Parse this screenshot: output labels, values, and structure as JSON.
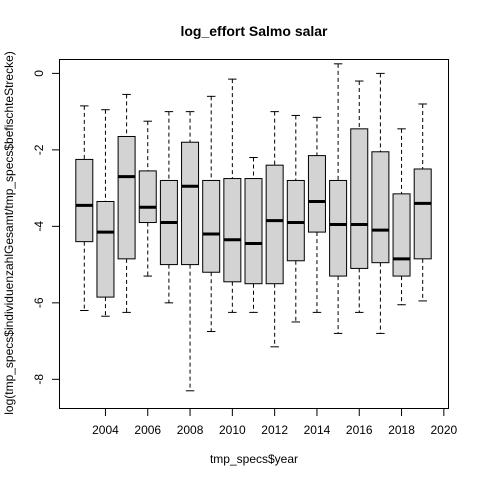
{
  "chart_data": {
    "type": "boxplot",
    "title": "log_effort Salmo salar",
    "xlabel": "tmp_specs$year",
    "ylabel": "log(tmp_specs$individuenzahlGesamt/tmp_specs$befischteStrecke)",
    "ylim": [
      -8.75,
      0.35
    ],
    "yticks": [
      0,
      -2,
      -4,
      -6,
      -8
    ],
    "xtick_labels": [
      "2004",
      "2006",
      "2008",
      "2010",
      "2012",
      "2014",
      "2016",
      "2018",
      "2020"
    ],
    "box_fill": "#d3d3d3",
    "frame": true,
    "grid": false,
    "categories": [
      "2003",
      "2004",
      "2005",
      "2006",
      "2007",
      "2008",
      "2009",
      "2010",
      "2011",
      "2012",
      "2013",
      "2014",
      "2015",
      "2016",
      "2017",
      "2018",
      "2019",
      "2020"
    ],
    "boxes": [
      {
        "year": "2003",
        "whisker_low": -6.2,
        "q1": -4.4,
        "median": -3.45,
        "q3": -2.25,
        "whisker_high": -0.85
      },
      {
        "year": "2004",
        "whisker_low": -6.35,
        "q1": -5.85,
        "median": -4.15,
        "q3": -3.35,
        "whisker_high": -0.95
      },
      {
        "year": "2005",
        "whisker_low": -6.25,
        "q1": -4.85,
        "median": -2.7,
        "q3": -1.65,
        "whisker_high": -0.55
      },
      {
        "year": "2006",
        "whisker_low": -5.3,
        "q1": -3.9,
        "median": -3.5,
        "q3": -2.55,
        "whisker_high": -1.25
      },
      {
        "year": "2007",
        "whisker_low": -6.0,
        "q1": -5.0,
        "median": -3.9,
        "q3": -2.8,
        "whisker_high": -1.0
      },
      {
        "year": "2008",
        "whisker_low": -8.3,
        "q1": -5.0,
        "median": -2.95,
        "q3": -1.8,
        "whisker_high": -1.0
      },
      {
        "year": "2009",
        "whisker_low": -6.75,
        "q1": -5.2,
        "median": -4.2,
        "q3": -2.8,
        "whisker_high": -0.6
      },
      {
        "year": "2010",
        "whisker_low": -6.25,
        "q1": -5.45,
        "median": -4.35,
        "q3": -2.75,
        "whisker_high": -0.15
      },
      {
        "year": "2011",
        "whisker_low": -6.25,
        "q1": -5.5,
        "median": -4.45,
        "q3": -2.75,
        "whisker_high": -2.2
      },
      {
        "year": "2012",
        "whisker_low": -7.15,
        "q1": -5.5,
        "median": -3.85,
        "q3": -2.4,
        "whisker_high": -1.0
      },
      {
        "year": "2013",
        "whisker_low": -6.5,
        "q1": -4.9,
        "median": -3.9,
        "q3": -2.8,
        "whisker_high": -1.1
      },
      {
        "year": "2014",
        "whisker_low": -6.25,
        "q1": -4.15,
        "median": -3.35,
        "q3": -2.15,
        "whisker_high": -1.15
      },
      {
        "year": "2015",
        "whisker_low": -6.8,
        "q1": -5.3,
        "median": -3.95,
        "q3": -2.8,
        "whisker_high": 0.25
      },
      {
        "year": "2016",
        "whisker_low": -6.25,
        "q1": -5.1,
        "median": -3.95,
        "q3": -1.45,
        "whisker_high": -0.2
      },
      {
        "year": "2017",
        "whisker_low": -6.8,
        "q1": -4.95,
        "median": -4.1,
        "q3": -2.05,
        "whisker_high": 0.0
      },
      {
        "year": "2018",
        "whisker_low": -6.05,
        "q1": -5.3,
        "median": -4.85,
        "q3": -3.15,
        "whisker_high": -1.45
      },
      {
        "year": "2019",
        "whisker_low": -5.95,
        "q1": -4.85,
        "median": -3.4,
        "q3": -2.5,
        "whisker_high": -0.8
      }
    ]
  }
}
